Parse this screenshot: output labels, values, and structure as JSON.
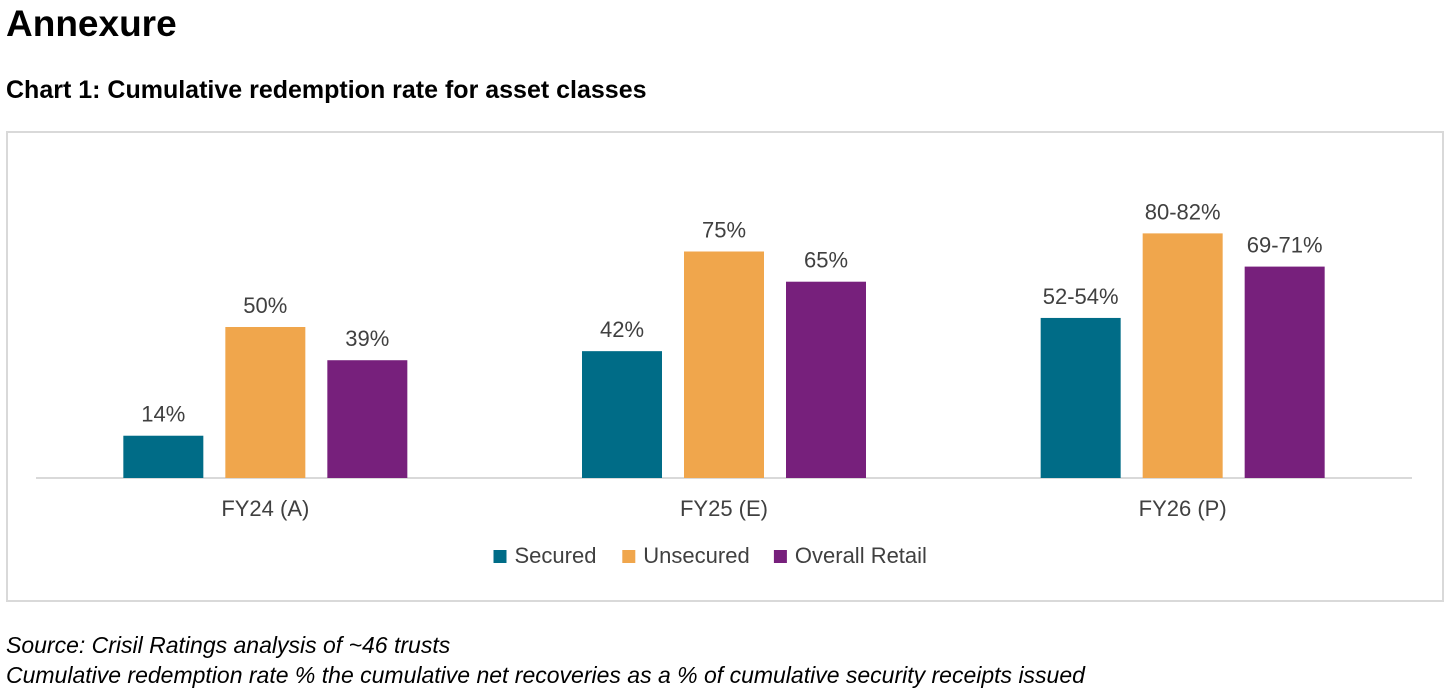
{
  "page": {
    "heading": "Annexure",
    "chart_title": "Chart 1: Cumulative redemption rate for asset classes",
    "source_note": "Source: Crisil Ratings analysis of ~46 trusts",
    "definition_note": "Cumulative redemption rate % the cumulative net recoveries as a % of cumulative security receipts issued"
  },
  "chart_data": {
    "type": "bar",
    "title": "Chart 1: Cumulative redemption rate for asset classes",
    "xlabel": "",
    "ylabel": "",
    "ylim": [
      0,
      90
    ],
    "grid": false,
    "legend_position": "bottom",
    "categories": [
      "FY24 (A)",
      "FY25 (E)",
      "FY26 (P)"
    ],
    "series": [
      {
        "name": "Secured",
        "color": "#006C87",
        "values": [
          14,
          42,
          53
        ],
        "labels": [
          "14%",
          "42%",
          "52-54%"
        ]
      },
      {
        "name": "Unsecured",
        "color": "#F0A64C",
        "values": [
          50,
          75,
          81
        ],
        "labels": [
          "50%",
          "75%",
          "80-82%"
        ]
      },
      {
        "name": "Overall Retail",
        "color": "#77207C",
        "values": [
          39,
          65,
          70
        ],
        "labels": [
          "39%",
          "65%",
          "69-71%"
        ]
      }
    ]
  }
}
